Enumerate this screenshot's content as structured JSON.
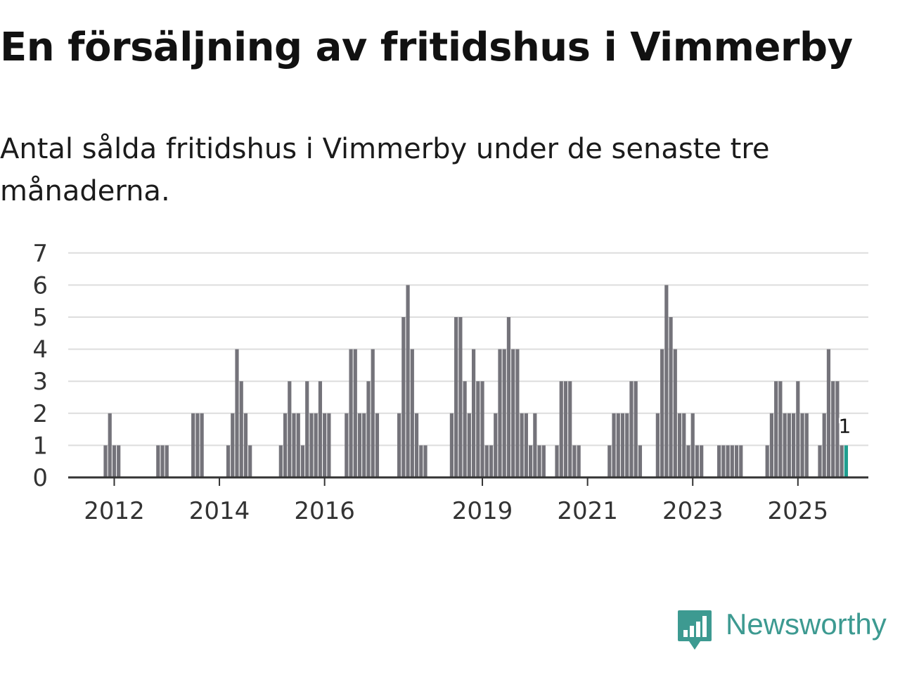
{
  "title": "En försäljning av fritidshus i Vimmerby",
  "subtitle": "Antal sålda fritidshus i Vimmerby under de senaste tre månaderna.",
  "brand": {
    "name": "Newsworthy",
    "color": "#3d9a91"
  },
  "colors": {
    "bar": "#74737a",
    "highlight": "#1f9e8f",
    "grid": "#dddddd",
    "axis": "#333333"
  },
  "chart_data": {
    "type": "bar",
    "ylim": [
      0,
      7
    ],
    "yticks": [
      0,
      1,
      2,
      3,
      4,
      5,
      6,
      7
    ],
    "grid": true,
    "xticks": [
      "2012",
      "2014",
      "2016",
      "2019",
      "2021",
      "2023",
      "2025"
    ],
    "highlight_label": "1",
    "bars": [
      {
        "x": "2011-11",
        "y": 1
      },
      {
        "x": "2011-12",
        "y": 2
      },
      {
        "x": "2012-01",
        "y": 1
      },
      {
        "x": "2012-02",
        "y": 1
      },
      {
        "x": "2012-11",
        "y": 1
      },
      {
        "x": "2012-12",
        "y": 1
      },
      {
        "x": "2013-01",
        "y": 1
      },
      {
        "x": "2013-07",
        "y": 2
      },
      {
        "x": "2013-08",
        "y": 2
      },
      {
        "x": "2013-09",
        "y": 2
      },
      {
        "x": "2014-03",
        "y": 1
      },
      {
        "x": "2014-04",
        "y": 2
      },
      {
        "x": "2014-05",
        "y": 4
      },
      {
        "x": "2014-06",
        "y": 3
      },
      {
        "x": "2014-07",
        "y": 2
      },
      {
        "x": "2014-08",
        "y": 1
      },
      {
        "x": "2015-03",
        "y": 1
      },
      {
        "x": "2015-04",
        "y": 2
      },
      {
        "x": "2015-05",
        "y": 3
      },
      {
        "x": "2015-06",
        "y": 2
      },
      {
        "x": "2015-07",
        "y": 2
      },
      {
        "x": "2015-08",
        "y": 1
      },
      {
        "x": "2015-09",
        "y": 3
      },
      {
        "x": "2015-10",
        "y": 2
      },
      {
        "x": "2015-11",
        "y": 2
      },
      {
        "x": "2015-12",
        "y": 3
      },
      {
        "x": "2016-01",
        "y": 2
      },
      {
        "x": "2016-02",
        "y": 2
      },
      {
        "x": "2016-06",
        "y": 2
      },
      {
        "x": "2016-07",
        "y": 4
      },
      {
        "x": "2016-08",
        "y": 4
      },
      {
        "x": "2016-09",
        "y": 2
      },
      {
        "x": "2016-10",
        "y": 2
      },
      {
        "x": "2016-11",
        "y": 3
      },
      {
        "x": "2016-12",
        "y": 4
      },
      {
        "x": "2017-01",
        "y": 2
      },
      {
        "x": "2017-06",
        "y": 2
      },
      {
        "x": "2017-07",
        "y": 5
      },
      {
        "x": "2017-08",
        "y": 6
      },
      {
        "x": "2017-09",
        "y": 4
      },
      {
        "x": "2017-10",
        "y": 2
      },
      {
        "x": "2017-11",
        "y": 1
      },
      {
        "x": "2017-12",
        "y": 1
      },
      {
        "x": "2018-06",
        "y": 2
      },
      {
        "x": "2018-07",
        "y": 5
      },
      {
        "x": "2018-08",
        "y": 5
      },
      {
        "x": "2018-09",
        "y": 3
      },
      {
        "x": "2018-10",
        "y": 2
      },
      {
        "x": "2018-11",
        "y": 4
      },
      {
        "x": "2018-12",
        "y": 3
      },
      {
        "x": "2019-01",
        "y": 3
      },
      {
        "x": "2019-02",
        "y": 1
      },
      {
        "x": "2019-03",
        "y": 1
      },
      {
        "x": "2019-04",
        "y": 2
      },
      {
        "x": "2019-05",
        "y": 4
      },
      {
        "x": "2019-06",
        "y": 4
      },
      {
        "x": "2019-07",
        "y": 5
      },
      {
        "x": "2019-08",
        "y": 4
      },
      {
        "x": "2019-09",
        "y": 4
      },
      {
        "x": "2019-10",
        "y": 2
      },
      {
        "x": "2019-11",
        "y": 2
      },
      {
        "x": "2019-12",
        "y": 1
      },
      {
        "x": "2020-01",
        "y": 2
      },
      {
        "x": "2020-02",
        "y": 1
      },
      {
        "x": "2020-03",
        "y": 1
      },
      {
        "x": "2020-06",
        "y": 1
      },
      {
        "x": "2020-07",
        "y": 3
      },
      {
        "x": "2020-08",
        "y": 3
      },
      {
        "x": "2020-09",
        "y": 3
      },
      {
        "x": "2020-10",
        "y": 1
      },
      {
        "x": "2020-11",
        "y": 1
      },
      {
        "x": "2021-06",
        "y": 1
      },
      {
        "x": "2021-07",
        "y": 2
      },
      {
        "x": "2021-08",
        "y": 2
      },
      {
        "x": "2021-09",
        "y": 2
      },
      {
        "x": "2021-10",
        "y": 2
      },
      {
        "x": "2021-11",
        "y": 3
      },
      {
        "x": "2021-12",
        "y": 3
      },
      {
        "x": "2022-01",
        "y": 1
      },
      {
        "x": "2022-05",
        "y": 2
      },
      {
        "x": "2022-06",
        "y": 4
      },
      {
        "x": "2022-07",
        "y": 6
      },
      {
        "x": "2022-08",
        "y": 5
      },
      {
        "x": "2022-09",
        "y": 4
      },
      {
        "x": "2022-10",
        "y": 2
      },
      {
        "x": "2022-11",
        "y": 2
      },
      {
        "x": "2022-12",
        "y": 1
      },
      {
        "x": "2023-01",
        "y": 2
      },
      {
        "x": "2023-02",
        "y": 1
      },
      {
        "x": "2023-03",
        "y": 1
      },
      {
        "x": "2023-07",
        "y": 1
      },
      {
        "x": "2023-08",
        "y": 1
      },
      {
        "x": "2023-09",
        "y": 1
      },
      {
        "x": "2023-10",
        "y": 1
      },
      {
        "x": "2023-11",
        "y": 1
      },
      {
        "x": "2023-12",
        "y": 1
      },
      {
        "x": "2024-06",
        "y": 1
      },
      {
        "x": "2024-07",
        "y": 2
      },
      {
        "x": "2024-08",
        "y": 3
      },
      {
        "x": "2024-09",
        "y": 3
      },
      {
        "x": "2024-10",
        "y": 2
      },
      {
        "x": "2024-11",
        "y": 2
      },
      {
        "x": "2024-12",
        "y": 2
      },
      {
        "x": "2025-01",
        "y": 3
      },
      {
        "x": "2025-02",
        "y": 2
      },
      {
        "x": "2025-03",
        "y": 2
      },
      {
        "x": "2025-06",
        "y": 1
      },
      {
        "x": "2025-07",
        "y": 2
      },
      {
        "x": "2025-08",
        "y": 4
      },
      {
        "x": "2025-09",
        "y": 3
      },
      {
        "x": "2025-10",
        "y": 3
      },
      {
        "x": "2025-11",
        "y": 1
      },
      {
        "x": "2025-12",
        "y": 1,
        "highlight": true
      }
    ]
  }
}
